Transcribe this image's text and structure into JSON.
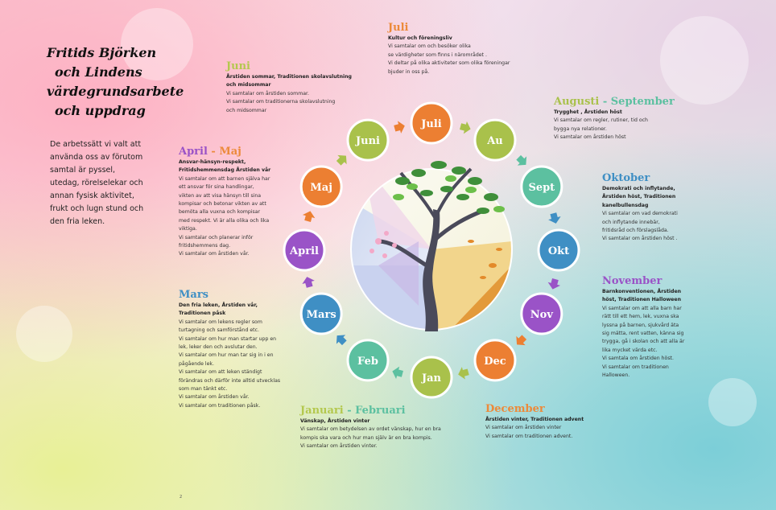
{
  "title_lines": [
    "Fritids Björken",
    "och Lindens",
    "värdegrundsarbete",
    "och uppdrag"
  ],
  "intro": "De arbetssätt vi valt att använda oss av förutom samtal är pyssel, utedag, rörelselekar och annan fysisk aktivitet, frukt och lugn stund och den fria leken.",
  "months": [
    {
      "label": "Juli",
      "color": "#ec7f32"
    },
    {
      "label": "Au",
      "color": "#a9c14b"
    },
    {
      "label": "Sept",
      "color": "#5cc0a0"
    },
    {
      "label": "Okt",
      "color": "#3f8fc4"
    },
    {
      "label": "Nov",
      "color": "#9a53c7"
    },
    {
      "label": "Dec",
      "color": "#ec7f32"
    },
    {
      "label": "Jan",
      "color": "#a9c14b"
    },
    {
      "label": "Feb",
      "color": "#5cc0a0"
    },
    {
      "label": "Mars",
      "color": "#3f8fc4"
    },
    {
      "label": "April",
      "color": "#9a53c7"
    },
    {
      "label": "Maj",
      "color": "#ec7f32"
    },
    {
      "label": "Juni",
      "color": "#a9c14b"
    }
  ],
  "blocks": {
    "juli": {
      "heading_a": "Juli",
      "heading_sep": "",
      "heading_b": "",
      "color_a": "#ec8a3a",
      "color_b": "#ec8a3a",
      "lines": [
        {
          "t": "Kultur och föreningsliv",
          "bold": true
        },
        {
          "t": "Vi samtalar om och besöker olika"
        },
        {
          "t": "se värdigheter som finns i närområdet ."
        },
        {
          "t": "Vi  deltar på olika aktiviteter som  olika föreningar"
        },
        {
          "t": "bjuder in oss på."
        }
      ]
    },
    "juni": {
      "heading_a": "Juni",
      "heading_sep": "",
      "heading_b": "",
      "color_a": "#b4c84e",
      "color_b": "#b4c84e",
      "lines": [
        {
          "t": "Årstiden sommar, Traditionen skolavslutning",
          "bold": true
        },
        {
          "t": "och midsommar",
          "bold": true
        },
        {
          "t": "Vi samtalar om årstiden sommar."
        },
        {
          "t": "Vi samtalar om traditionerna skolavslutning"
        },
        {
          "t": "och midsommar"
        }
      ]
    },
    "aug": {
      "heading_a": "Augusti",
      "heading_sep": " - ",
      "heading_b": "September",
      "color_a": "#a9c14b",
      "color_b": "#5cc0a0",
      "lines": [
        {
          "t": "Trygghet , Årstiden höst",
          "bold": true
        },
        {
          "t": "Vi samtalar om regler, rutiner, tid och"
        },
        {
          "t": " bygga nya relationer."
        },
        {
          "t": "Vi samtalar om årstiden höst"
        }
      ]
    },
    "okt": {
      "heading_a": "Oktober",
      "heading_sep": "",
      "heading_b": "",
      "color_a": "#3f8fc4",
      "color_b": "#3f8fc4",
      "lines": [
        {
          "t": "Demokrati och inflytande,",
          "bold": true
        },
        {
          "t": "Årstiden höst, Traditionen",
          "bold": true
        },
        {
          "t": "kanelbullensdag",
          "bold": true
        },
        {
          "t": "Vi samtalar om vad demokrati"
        },
        {
          "t": "och inflytande innebär,"
        },
        {
          "t": "fritidsråd och förslagslåda."
        },
        {
          "t": "Vi samtalar om årstiden höst ."
        }
      ]
    },
    "nov": {
      "heading_a": "November",
      "heading_sep": "",
      "heading_b": "",
      "color_a": "#9a53c7",
      "color_b": "#9a53c7",
      "lines": [
        {
          "t": "Barnkonventionen,  Årstiden",
          "bold": true
        },
        {
          "t": "höst,  Traditionen Halloween",
          "bold": true
        },
        {
          "t": "Vi samtalar om att alla barn har"
        },
        {
          "t": "rätt till ett hem, lek, vuxna ska"
        },
        {
          "t": "lyssna på barnen, sjukvård äta"
        },
        {
          "t": "sig mätta, rent vatten, känna sig"
        },
        {
          "t": "trygga, gå i skolan och att alla är"
        },
        {
          "t": "lika mycket värda etc."
        },
        {
          "t": "Vi samtala om årstiden höst."
        },
        {
          "t": "Vi samtalar om traditionen"
        },
        {
          "t": "Halloween."
        }
      ]
    },
    "dec": {
      "heading_a": "December",
      "heading_sep": "",
      "heading_b": "",
      "color_a": "#ec8a3a",
      "color_b": "#ec8a3a",
      "lines": [
        {
          "t": "Årstiden vinter, Traditionen advent",
          "bold": true
        },
        {
          "t": "Vi samtalar om årstiden vinter"
        },
        {
          "t": "Vi samtalar om traditionen advent."
        }
      ]
    },
    "jan": {
      "heading_a": "Januari",
      "heading_sep": "  - ",
      "heading_b": "Februari",
      "color_a": "#b4c84e",
      "color_b": "#5cc0a0",
      "lines": [
        {
          "t": "Vänskap, Årstiden vinter",
          "bold": true
        },
        {
          "t": "Vi samtalar om betydelsen av ordet vänskap, hur en bra"
        },
        {
          "t": "kompis ska vara och hur man själv är en bra kompis."
        },
        {
          "t": "Vi samtalar om årstiden vinter."
        }
      ]
    },
    "mars": {
      "heading_a": "Mars",
      "heading_sep": "",
      "heading_b": "",
      "color_a": "#3f8fc4",
      "color_b": "#3f8fc4",
      "lines": [
        {
          "t": "Den fria leken,  Årstiden vår,",
          "bold": true
        },
        {
          "t": "Traditionen  påsk",
          "bold": true
        },
        {
          "t": "Vi samtalar om lekens regler som"
        },
        {
          "t": "turtagning och samförstånd etc."
        },
        {
          "t": "Vi samtalar  om hur man startar upp en"
        },
        {
          "t": "lek, leker den och avslutar den."
        },
        {
          "t": "Vi samtalar om hur man tar sig in i en"
        },
        {
          "t": "pågående lek."
        },
        {
          "t": "Vi samtalar om att leken ständigt"
        },
        {
          "t": "förändras och därför inte alltid utvecklas"
        },
        {
          "t": "som man tänkt etc."
        },
        {
          "t": "Vi samtalar om årstiden  vår."
        },
        {
          "t": "Vi samtalar om traditionen påsk."
        }
      ]
    },
    "april": {
      "heading_a": "April",
      "heading_sep": " - ",
      "heading_b": "Maj",
      "color_a": "#9a53c7",
      "color_b": "#ec8a3a",
      "lines": [
        {
          "t": "Ansvar-hänsyn-respekt,",
          "bold": true
        },
        {
          "t": "Fritidshemmensdag  Årstiden vår",
          "bold": true
        },
        {
          "t": "Vi samtalar om att barnen själva har"
        },
        {
          "t": "ett ansvar för sina handlingar,"
        },
        {
          "t": "vikten av att visa hänsyn till sina"
        },
        {
          "t": "kompisar och  betonar vikten av att"
        },
        {
          "t": "bemöta alla vuxna och kompisar"
        },
        {
          "t": "med respekt. Vi är alla olika och lika"
        },
        {
          "t": "viktiga."
        },
        {
          "t": "Vi samtalar och planerar inför"
        },
        {
          "t": "fritidshemmens dag."
        },
        {
          "t": "Vi samtalar om årstiden vår."
        }
      ]
    }
  },
  "page_number": "2",
  "colors": {
    "orange": "#ec7f32",
    "green": "#a9c14b",
    "teal": "#5cc0a0",
    "blue": "#3f8fc4",
    "purple": "#9a53c7"
  }
}
